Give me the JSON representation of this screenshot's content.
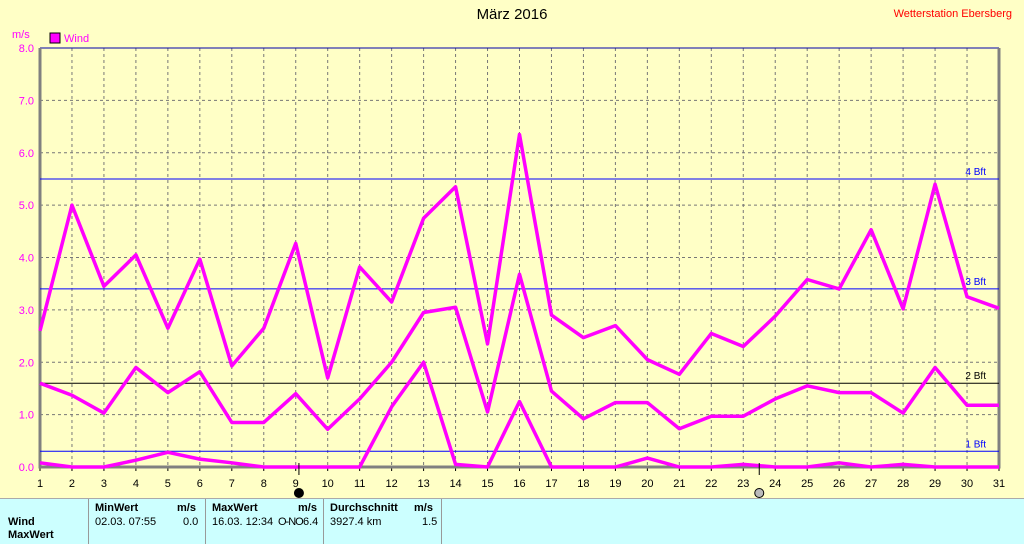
{
  "title": "März 2016",
  "station": "Wetterstation Ebersberg",
  "chart_data": {
    "type": "line",
    "title": "März 2016",
    "ylabel": "m/s",
    "ylim": [
      0,
      8
    ],
    "yticks": [
      "0.0",
      "1.0",
      "2.0",
      "3.0",
      "4.0",
      "5.0",
      "6.0",
      "7.0",
      "8.0"
    ],
    "x": [
      1,
      2,
      3,
      4,
      5,
      6,
      7,
      8,
      9,
      10,
      11,
      12,
      13,
      14,
      15,
      16,
      17,
      18,
      19,
      20,
      21,
      22,
      23,
      24,
      25,
      26,
      27,
      28,
      29,
      30,
      31
    ],
    "legend": "Wind",
    "legend_position": "top-left",
    "grid": true,
    "color": "#ff00ff",
    "series": [
      {
        "values": [
          2.6,
          5.0,
          3.45,
          4.05,
          2.65,
          3.97,
          1.93,
          2.65,
          4.27,
          1.7,
          3.82,
          3.15,
          4.75,
          5.35,
          2.35,
          6.35,
          2.9,
          2.47,
          2.7,
          2.05,
          1.77,
          2.55,
          2.3,
          2.88,
          3.58,
          3.4,
          4.53,
          3.02,
          5.4,
          3.25,
          3.03
        ]
      },
      {
        "values": [
          1.6,
          1.37,
          1.03,
          1.9,
          1.42,
          1.82,
          0.85,
          0.85,
          1.4,
          0.72,
          1.3,
          2.0,
          2.95,
          3.05,
          1.05,
          3.68,
          1.45,
          0.92,
          1.23,
          1.23,
          0.73,
          0.97,
          0.97,
          1.3,
          1.55,
          1.42,
          1.42,
          1.03,
          1.9,
          1.18,
          1.18
        ]
      },
      {
        "values": [
          0.08,
          0,
          0,
          0.13,
          0.28,
          0.15,
          0.08,
          0,
          0,
          0,
          0,
          1.15,
          2.0,
          0.05,
          0,
          1.25,
          0,
          0,
          0,
          0.17,
          0,
          0,
          0.05,
          0,
          0,
          0.08,
          0,
          0.05,
          0,
          0,
          0
        ]
      }
    ],
    "reference_lines": [
      {
        "label": "1 Bft",
        "value": 0.3,
        "color": "#0000ff"
      },
      {
        "label": "2 Bft",
        "value": 1.6,
        "color": "#000000"
      },
      {
        "label": "3 Bft",
        "value": 3.4,
        "color": "#0000ff"
      },
      {
        "label": "4 Bft",
        "value": 5.5,
        "color": "#0000ff"
      }
    ],
    "moon_phases": [
      {
        "day": 9.1,
        "phase": "new-moon"
      },
      {
        "day": 23.5,
        "phase": "full-moon"
      }
    ]
  },
  "table": {
    "row_label": "Wind",
    "row2_label": "MaxWert",
    "min": {
      "header": "MinWert",
      "unit": "m/s",
      "when": "02.03.  07:55",
      "value": "0.0"
    },
    "max": {
      "header": "MaxWert",
      "unit": "m/s",
      "when": "16.03.  12:34",
      "dir": "O-NO",
      "value": "6.4"
    },
    "avg": {
      "header": "Durchschnitt",
      "unit": "m/s",
      "distance": "3927.4 km",
      "value": "1.5"
    }
  }
}
